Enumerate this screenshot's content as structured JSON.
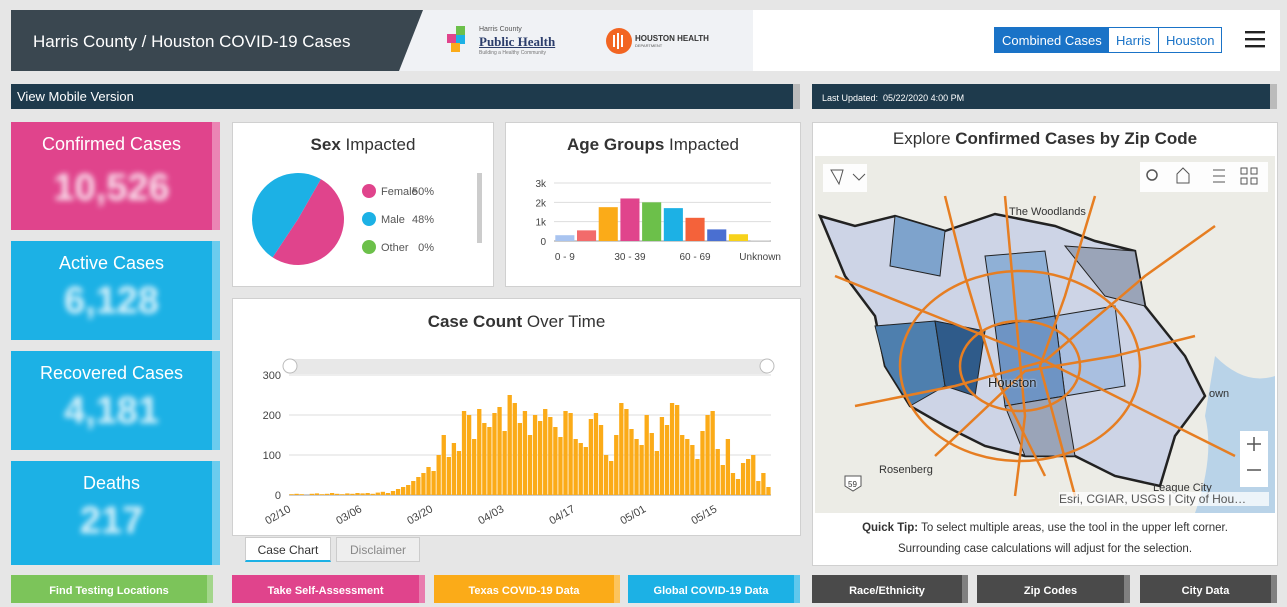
{
  "header": {
    "title": "Harris County / Houston COVID-19 Cases",
    "logo1": {
      "small": "Harris County",
      "name": "Public Health",
      "tagline": "Building a Healthy Community"
    },
    "logo2": {
      "name": "HOUSTON HEALTH",
      "sub": "DEPARTMENT"
    },
    "buttons": [
      "Combined Cases",
      "Harris",
      "Houston"
    ]
  },
  "bar": {
    "mobile": "View Mobile Version",
    "updated": "Last Updated:  05/22/2020 4:00 PM"
  },
  "cards": [
    {
      "label": "Confirmed Cases",
      "value": "10,526"
    },
    {
      "label": "Active Cases",
      "value": "6,128"
    },
    {
      "label": "Recovered Cases",
      "value": "4,181"
    },
    {
      "label": "Deaths",
      "value": "217"
    }
  ],
  "chart_data": [
    {
      "type": "pie",
      "title": [
        "Sex",
        "Impacted"
      ],
      "categories": [
        "Female",
        "Male",
        "Other"
      ],
      "values": [
        50,
        48,
        0
      ],
      "value_labels": [
        "50%",
        "48%",
        "0%"
      ],
      "colors": [
        "#e0448c",
        "#1cb1e5",
        "#6cc04a"
      ]
    },
    {
      "type": "bar",
      "title": [
        "Age Groups",
        "Impacted"
      ],
      "categories": [
        "0 - 9",
        null,
        null,
        "30 - 39",
        null,
        null,
        "60 - 69",
        null,
        null,
        "Unknown"
      ],
      "values": [
        300,
        550,
        1750,
        2200,
        2000,
        1700,
        1200,
        600,
        350,
        30
      ],
      "colors": [
        "#a9c4f0",
        "#f26b6b",
        "#fbab18",
        "#e0448c",
        "#6cc04a",
        "#1cb1e5",
        "#f4623a",
        "#4a6fd1",
        "#f7d21a",
        "#c9c9c9"
      ],
      "ylim": [
        0,
        3000
      ],
      "yticks": [
        0,
        {
          "value": 1000,
          "label": "1k"
        },
        {
          "value": 2000,
          "label": "2k"
        },
        {
          "value": 3000,
          "label": "3k"
        }
      ],
      "grid": true
    },
    {
      "type": "bar",
      "title": [
        "Case Count",
        "Over Time"
      ],
      "categories": [
        "02/10",
        null,
        null,
        null,
        null,
        null,
        null,
        null,
        null,
        null,
        null,
        null,
        null,
        null,
        "03/06",
        null,
        null,
        null,
        null,
        null,
        null,
        null,
        null,
        null,
        null,
        null,
        null,
        null,
        "03/20",
        null,
        null,
        null,
        null,
        null,
        null,
        null,
        null,
        null,
        null,
        null,
        null,
        null,
        "04/03",
        null,
        null,
        null,
        null,
        null,
        null,
        null,
        null,
        null,
        null,
        null,
        null,
        null,
        "04/17",
        null,
        null,
        null,
        null,
        null,
        null,
        null,
        null,
        null,
        null,
        null,
        null,
        null,
        "05/01",
        null,
        null,
        null,
        null,
        null,
        null,
        null,
        null,
        null,
        null,
        null,
        null,
        null,
        "05/15",
        null,
        null,
        null,
        null,
        null,
        null,
        null,
        null,
        null,
        null
      ],
      "values": [
        2,
        3,
        2,
        0,
        3,
        4,
        2,
        3,
        5,
        3,
        2,
        4,
        3,
        5,
        4,
        5,
        3,
        6,
        8,
        5,
        10,
        15,
        20,
        25,
        35,
        45,
        55,
        70,
        60,
        100,
        150,
        95,
        130,
        110,
        210,
        200,
        140,
        215,
        180,
        170,
        205,
        220,
        160,
        250,
        230,
        180,
        210,
        150,
        200,
        185,
        215,
        195,
        170,
        145,
        210,
        205,
        140,
        130,
        120,
        190,
        205,
        175,
        100,
        85,
        150,
        230,
        215,
        165,
        140,
        125,
        200,
        155,
        110,
        195,
        175,
        230,
        225,
        150,
        140,
        125,
        90,
        160,
        200,
        210,
        115,
        75,
        140,
        55,
        40,
        80,
        90,
        100,
        35,
        55,
        20
      ],
      "color": "#fbab18",
      "ylim": [
        0,
        320
      ],
      "yticks": [
        0,
        100,
        200,
        300
      ],
      "grid": true
    }
  ],
  "tabs": [
    "Case Chart",
    "Disclaimer"
  ],
  "map": {
    "title": [
      "Explore",
      "Confirmed Cases by Zip Code"
    ],
    "places": [
      "The Woodlands",
      "Houston",
      "Rosenberg",
      "League City",
      "own"
    ],
    "route": "59",
    "attribution": "Esri, CGIAR, USGS | City of Hou…",
    "tip_label": "Quick Tip:",
    "tip": "To select multiple areas, use the tool in the upper left corner.",
    "tip2": "Surrounding case calculations will adjust for the selection."
  },
  "links": [
    "Find Testing Locations",
    "Take Self-Assessment",
    "Texas COVID-19 Data",
    "Global COVID-19 Data",
    "Race/Ethnicity",
    "Zip Codes",
    "City Data"
  ]
}
